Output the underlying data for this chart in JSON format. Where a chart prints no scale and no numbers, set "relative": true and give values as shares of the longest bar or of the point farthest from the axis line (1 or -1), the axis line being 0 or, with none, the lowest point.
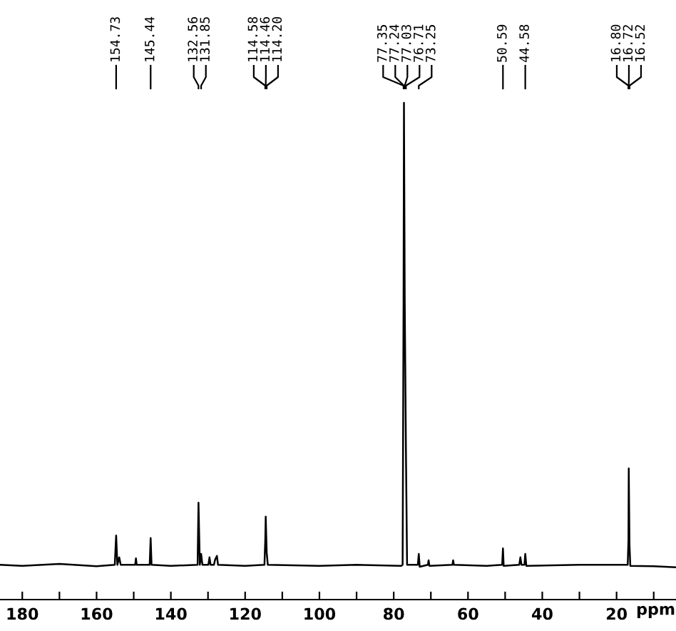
{
  "chart_data": {
    "type": "line",
    "relative": true,
    "xlabel": "ppm",
    "xlim": [
      186,
      4
    ],
    "xticks": [
      180,
      {
        "value": 170,
        "label": null
      },
      160,
      {
        "value": 150,
        "label": null
      },
      140,
      {
        "value": 130,
        "label": null
      },
      120,
      {
        "value": 110,
        "label": null
      },
      100,
      {
        "value": 90,
        "label": null
      },
      80,
      {
        "value": 70,
        "label": null
      },
      60,
      {
        "value": 50,
        "label": null
      },
      40,
      {
        "value": 30,
        "label": null
      },
      20,
      {
        "value": 10,
        "label": null
      }
    ],
    "grid": false,
    "marker": "none",
    "line_style": "solid",
    "series": [
      {
        "color": "#000000",
        "x": [
          186,
          180,
          170,
          160,
          155.1,
          154.73,
          154.4,
          153.9,
          153.5,
          149.6,
          149.4,
          149.2,
          145.7,
          145.44,
          145.2,
          140,
          132.8,
          132.56,
          132.2,
          131.85,
          131.5,
          129.9,
          129.6,
          129.3,
          128.4,
          128.1,
          127.6,
          127.3,
          120,
          114.8,
          114.58,
          114.46,
          114.2,
          113.9,
          100,
          90,
          78,
          77.6,
          77.35,
          77.24,
          77.03,
          76.71,
          76.4,
          73.5,
          73.25,
          73.0,
          70.8,
          70.6,
          70.4,
          64.2,
          64.0,
          63.8,
          55,
          50.8,
          50.59,
          50.4,
          46.2,
          45.9,
          45.6,
          44.8,
          44.58,
          44.3,
          30,
          20,
          17.0,
          16.8,
          16.72,
          16.52,
          16.3,
          10,
          4
        ],
        "values": [
          0.07,
          0.068,
          0.072,
          0.067,
          0.07,
          0.129,
          0.07,
          0.085,
          0.07,
          0.07,
          0.083,
          0.07,
          0.07,
          0.124,
          0.07,
          0.068,
          0.07,
          0.195,
          0.07,
          0.092,
          0.07,
          0.07,
          0.085,
          0.07,
          0.07,
          0.08,
          0.088,
          0.07,
          0.068,
          0.07,
          0.12,
          0.167,
          0.095,
          0.07,
          0.068,
          0.07,
          0.068,
          0.07,
          0.6,
          1.0,
          0.6,
          0.3,
          0.07,
          0.07,
          0.092,
          0.066,
          0.07,
          0.079,
          0.068,
          0.07,
          0.079,
          0.07,
          0.068,
          0.07,
          0.103,
          0.068,
          0.07,
          0.085,
          0.07,
          0.07,
          0.092,
          0.068,
          0.07,
          0.07,
          0.07,
          0.12,
          0.264,
          0.11,
          0.068,
          0.067,
          0.065
        ]
      }
    ],
    "annotations": [
      {
        "text": "154.73",
        "x": 154.73
      },
      {
        "text": "145.44",
        "x": 145.44
      },
      {
        "text": "132.56",
        "x": 132.56
      },
      {
        "text": "131.85",
        "x": 131.85
      },
      {
        "text": "114.58",
        "x": 114.58
      },
      {
        "text": "114.46",
        "x": 114.46
      },
      {
        "text": "114.20",
        "x": 114.2
      },
      {
        "text": "77.35",
        "x": 77.35
      },
      {
        "text": "77.24",
        "x": 77.24
      },
      {
        "text": "77.03",
        "x": 77.03
      },
      {
        "text": "76.71",
        "x": 76.71
      },
      {
        "text": "73.25",
        "x": 73.25
      },
      {
        "text": "50.59",
        "x": 50.59
      },
      {
        "text": "44.58",
        "x": 44.58
      },
      {
        "text": "16.80",
        "x": 16.8
      },
      {
        "text": "16.72",
        "x": 16.72
      },
      {
        "text": "16.52",
        "x": 16.52
      }
    ]
  }
}
